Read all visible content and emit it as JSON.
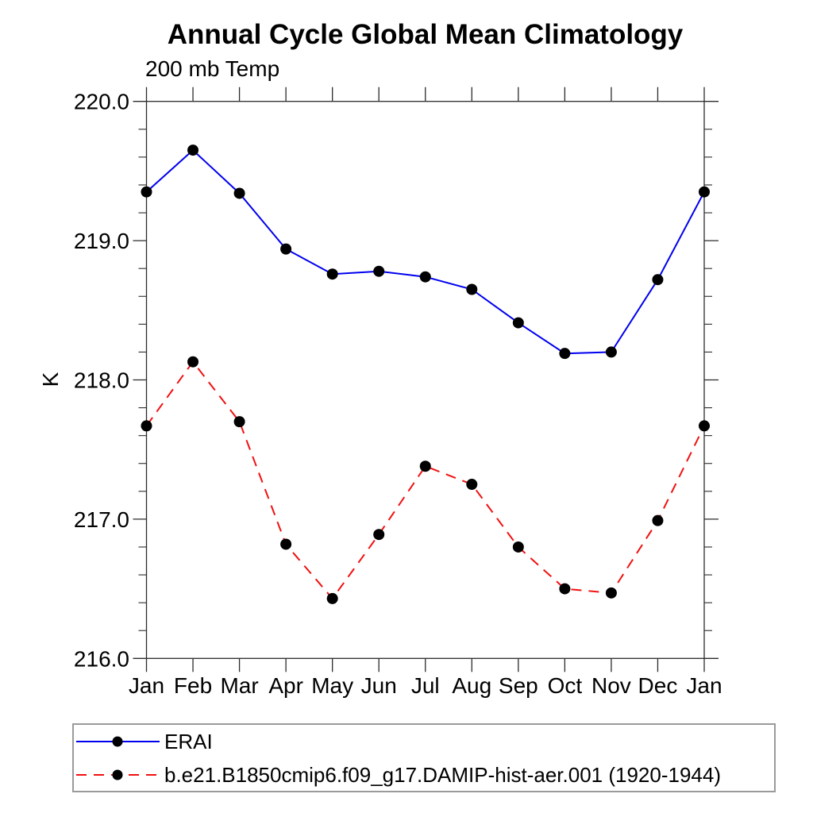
{
  "chart_data": {
    "type": "line",
    "title": "Annual Cycle Global Mean Climatology",
    "subtitle": "200 mb Temp",
    "ylabel": "K",
    "categories": [
      "Jan",
      "Feb",
      "Mar",
      "Apr",
      "May",
      "Jun",
      "Jul",
      "Aug",
      "Sep",
      "Oct",
      "Nov",
      "Dec",
      "Jan"
    ],
    "ylim": [
      216.0,
      220.0
    ],
    "ytick_major": [
      216.0,
      217.0,
      218.0,
      219.0,
      220.0
    ],
    "ytick_labels": [
      "216.0",
      "217.0",
      "218.0",
      "219.0",
      "220.0"
    ],
    "ytick_minor_step": 0.2,
    "grid": false,
    "legend_position": "bottom-left",
    "colors": {
      "erai_line": "#0000ee",
      "model_line": "#f01010",
      "marker": "#000000",
      "axis": "#2b2b2b",
      "legend_border": "#9a9a9a"
    },
    "series": [
      {
        "name": "ERAI",
        "color": "#0000ee",
        "line_style": "solid",
        "marker": "dot",
        "marker_color": "#000000",
        "values": [
          219.35,
          219.65,
          219.34,
          218.94,
          218.76,
          218.78,
          218.74,
          218.65,
          218.41,
          218.19,
          218.2,
          218.72,
          219.35
        ]
      },
      {
        "name": "b.e21.B1850cmip6.f09_g17.DAMIP-hist-aer.001 (1920-1944)",
        "color": "#f01010",
        "line_style": "dashed",
        "marker": "dot",
        "marker_color": "#000000",
        "values": [
          217.67,
          218.13,
          217.7,
          216.82,
          216.43,
          216.89,
          217.38,
          217.25,
          216.8,
          216.5,
          216.47,
          216.99,
          217.67
        ]
      }
    ]
  }
}
